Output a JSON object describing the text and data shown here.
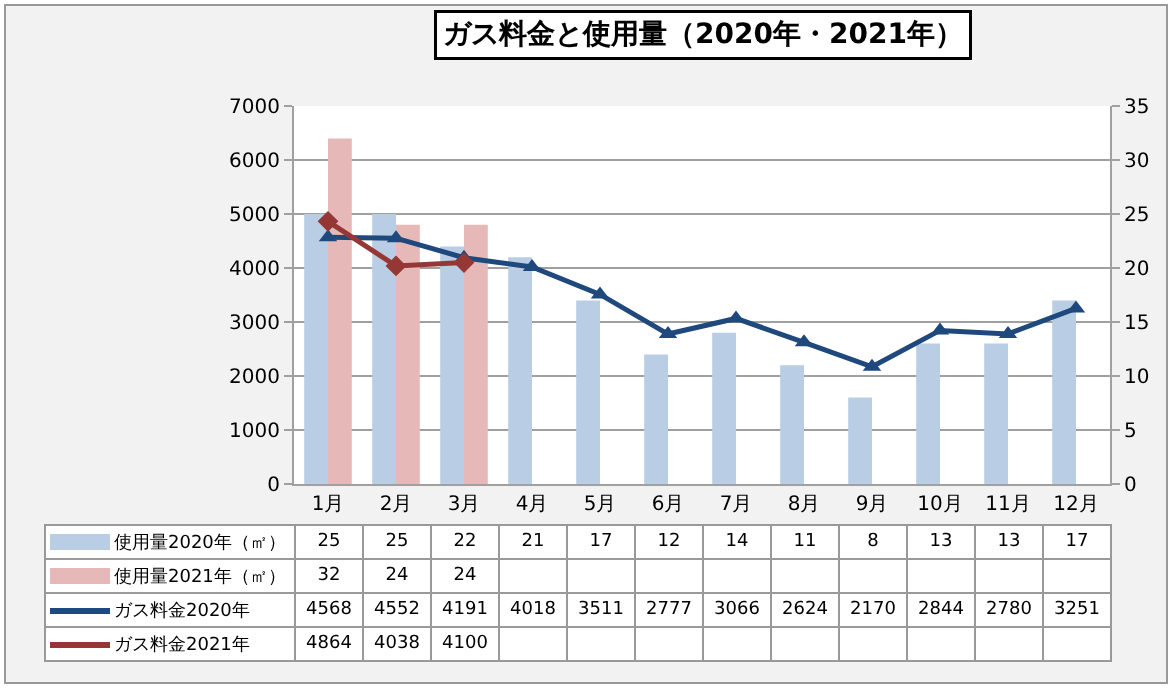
{
  "chart_data": {
    "type": "bar",
    "title": "ガス料金と使用量（2020年・2021年）",
    "categories": [
      "1月",
      "2月",
      "3月",
      "4月",
      "5月",
      "6月",
      "7月",
      "8月",
      "9月",
      "10月",
      "11月",
      "12月"
    ],
    "series": [
      {
        "name": "使用量2020年（㎡）",
        "axis": "y2",
        "color": "#b9cde5",
        "values": [
          25,
          25,
          22,
          21,
          17,
          12,
          14,
          11,
          8,
          13,
          13,
          17
        ]
      },
      {
        "name": "使用量2021年（㎡）",
        "axis": "y2",
        "color": "#e6b9b8",
        "values": [
          32,
          24,
          24,
          null,
          null,
          null,
          null,
          null,
          null,
          null,
          null,
          null
        ]
      },
      {
        "name": "ガス料金2020年",
        "type": "line",
        "marker": "triangle",
        "color": "#1f497d",
        "values": [
          4568,
          4552,
          4191,
          4018,
          3511,
          2777,
          3066,
          2624,
          2170,
          2844,
          2780,
          3251
        ]
      },
      {
        "name": "ガス料金2021年",
        "type": "line",
        "marker": "diamond",
        "color": "#953735",
        "values": [
          4864,
          4038,
          4100,
          null,
          null,
          null,
          null,
          null,
          null,
          null,
          null,
          null
        ]
      }
    ],
    "ylim": [
      0,
      7000
    ],
    "yticks": [
      0,
      1000,
      2000,
      3000,
      4000,
      5000,
      6000,
      7000
    ],
    "y2lim": [
      0,
      35
    ],
    "y2ticks": [
      0,
      5,
      10,
      15,
      20,
      25,
      30,
      35
    ],
    "grid": "y",
    "legend": "bottom",
    "data_labels": true
  }
}
